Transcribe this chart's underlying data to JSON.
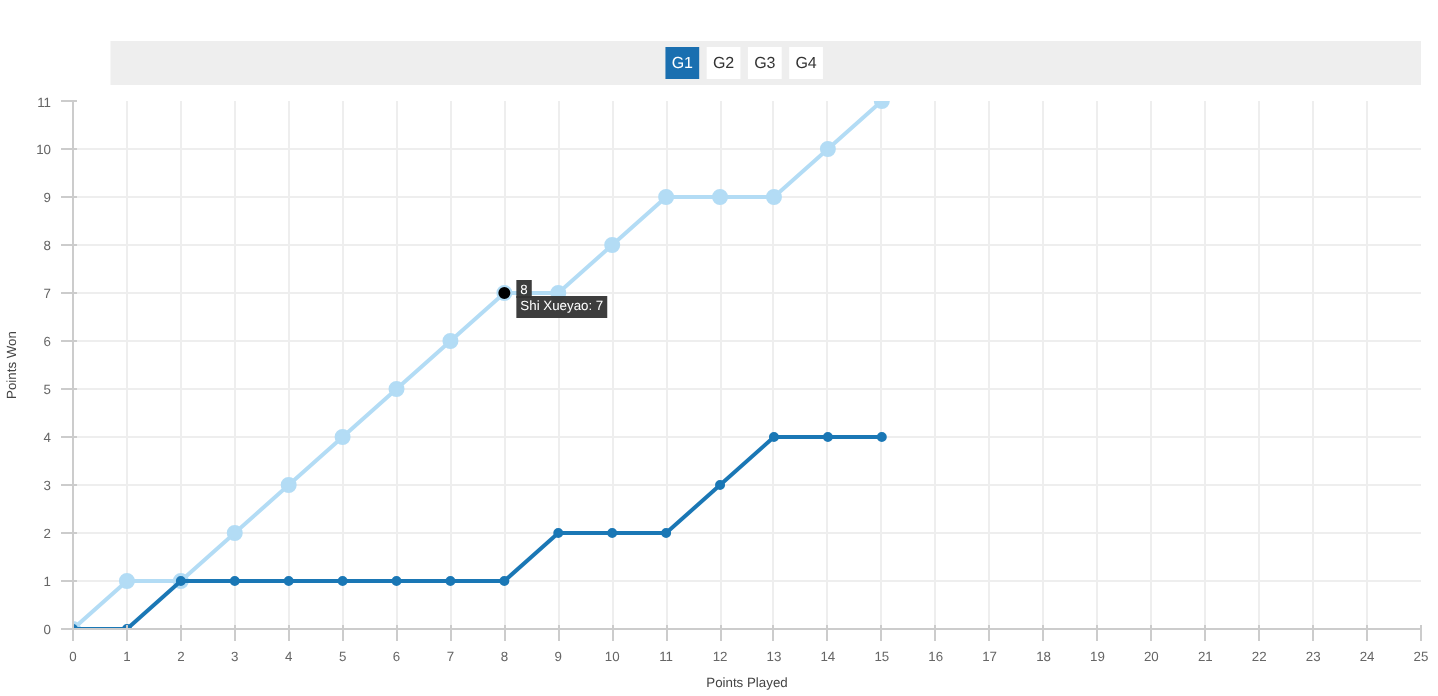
{
  "chart_data": {
    "type": "line",
    "xlabel": "Points Played",
    "ylabel": "Points Won",
    "annotations": [
      "G1",
      "G2",
      "G3",
      "G4",
      {
        "text": "8",
        "x": 8,
        "y": 7
      },
      {
        "text": "Shi Xueyao: 7",
        "x": 8,
        "y": 7
      }
    ],
    "x": [
      0,
      1,
      2,
      3,
      4,
      5,
      6,
      7,
      8,
      9,
      10,
      11,
      12,
      13,
      14,
      15
    ],
    "series": [
      {
        "color": "#b3dcf5",
        "values": [
          0,
          1,
          1,
          2,
          3,
          4,
          5,
          6,
          7,
          7,
          8,
          9,
          9,
          9,
          10,
          11
        ]
      },
      {
        "color": "#1a77b5",
        "values": [
          0,
          0,
          1,
          1,
          1,
          1,
          1,
          1,
          1,
          2,
          2,
          2,
          3,
          4,
          4,
          4
        ]
      }
    ],
    "xlim": [
      0,
      25
    ],
    "ylim": [
      0,
      11
    ],
    "xticks": [
      0,
      1,
      2,
      3,
      4,
      5,
      6,
      7,
      8,
      9,
      10,
      11,
      12,
      13,
      14,
      15,
      16,
      17,
      18,
      19,
      20,
      21,
      22,
      23,
      24,
      25
    ],
    "yticks": [
      0,
      1,
      2,
      3,
      4,
      5,
      6,
      7,
      8,
      9,
      10,
      11
    ],
    "grid": true,
    "marker": "circle",
    "line_style": "solid"
  }
}
